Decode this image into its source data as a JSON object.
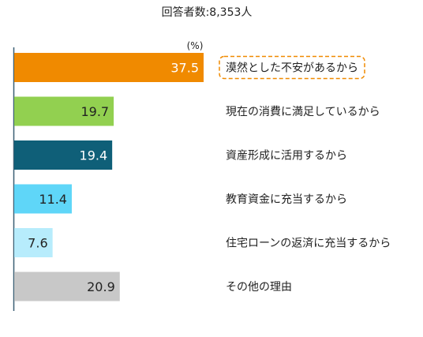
{
  "chart_data": {
    "type": "bar",
    "orientation": "horizontal",
    "subtitle": "回答者数:8,353人",
    "unit": "(%)",
    "categories": [
      "漠然とした不安があるから",
      "現在の消費に満足しているから",
      "資産形成に活用するから",
      "教育資金に充当するから",
      "住宅ローンの返済に充当するから",
      "その他の理由"
    ],
    "values": [
      37.5,
      19.7,
      19.4,
      11.4,
      7.6,
      20.9
    ],
    "value_labels": [
      "37.5",
      "19.7",
      "19.4",
      "11.4",
      "7.6",
      "20.9"
    ],
    "colors": [
      "#f08a00",
      "#92d050",
      "#0f5f78",
      "#5fd6f8",
      "#b7ecfc",
      "#c8c8c8"
    ],
    "value_label_colors": [
      "#ffffff",
      "#222222",
      "#ffffff",
      "#222222",
      "#222222",
      "#222222"
    ],
    "highlight": {
      "index": 0,
      "border_color": "#f08a00",
      "style": "dashed"
    },
    "xlim": [
      0,
      40
    ],
    "grid": false,
    "legend": "none"
  }
}
